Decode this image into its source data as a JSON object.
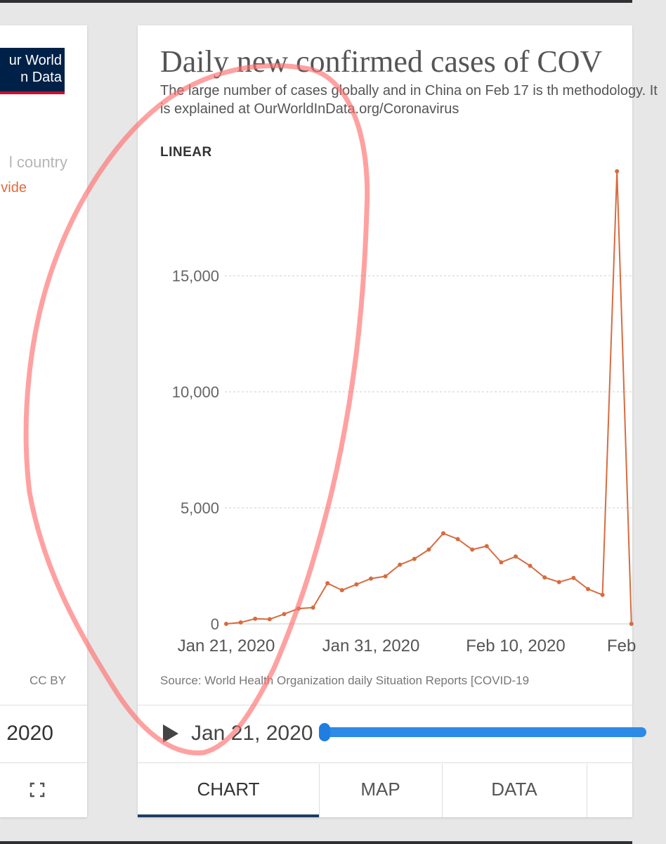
{
  "left_panel": {
    "logo_line1": "ur World",
    "logo_line2": "n Data",
    "selector_country": "l country",
    "selector_world": "vide",
    "license": "CC BY",
    "year_label": "2020"
  },
  "chart": {
    "title": "Daily new confirmed cases of COV",
    "subtitle": "The large number of cases globally and in China on Feb 17 is th methodology. It is explained at OurWorldInData.org/Coronavirus",
    "scale_toggle": "LINEAR",
    "source": "Source: World Health Organization daily Situation Reports [COVID-19"
  },
  "controls": {
    "time_label": "Jan 21, 2020"
  },
  "tabs": {
    "chart": "CHART",
    "map": "MAP",
    "data": "DATA"
  },
  "colors": {
    "series": "#d76b3f",
    "slider": "#2d8ae6",
    "annotation": "#ff6f6f"
  },
  "chart_data": {
    "type": "line",
    "title": "Daily new confirmed cases of COV",
    "y_ticks": [
      0,
      5000,
      10000,
      15000
    ],
    "y_tick_labels": [
      "0",
      "5,000",
      "10,000",
      "15,000"
    ],
    "x_ticks": [
      "Jan 21, 2020",
      "Jan 31, 2020",
      "Feb 10, 2020",
      "Feb"
    ],
    "ylim": [
      0,
      20000
    ],
    "grid": "horizontal dashed",
    "x": [
      "2020-01-21",
      "2020-01-22",
      "2020-01-23",
      "2020-01-24",
      "2020-01-25",
      "2020-01-26",
      "2020-01-27",
      "2020-01-28",
      "2020-01-29",
      "2020-01-30",
      "2020-01-31",
      "2020-02-01",
      "2020-02-02",
      "2020-02-03",
      "2020-02-04",
      "2020-02-05",
      "2020-02-06",
      "2020-02-07",
      "2020-02-08",
      "2020-02-09",
      "2020-02-10",
      "2020-02-11",
      "2020-02-12",
      "2020-02-13",
      "2020-02-14",
      "2020-02-15",
      "2020-02-16",
      "2020-02-17",
      "2020-02-18"
    ],
    "series": [
      {
        "values": [
          0,
          60,
          220,
          200,
          420,
          660,
          700,
          1750,
          1450,
          1700,
          1950,
          2050,
          2550,
          2800,
          3200,
          3900,
          3650,
          3200,
          3350,
          2650,
          2900,
          2500,
          2000,
          1800,
          1980,
          1500,
          1250,
          19500,
          0
        ]
      }
    ]
  }
}
